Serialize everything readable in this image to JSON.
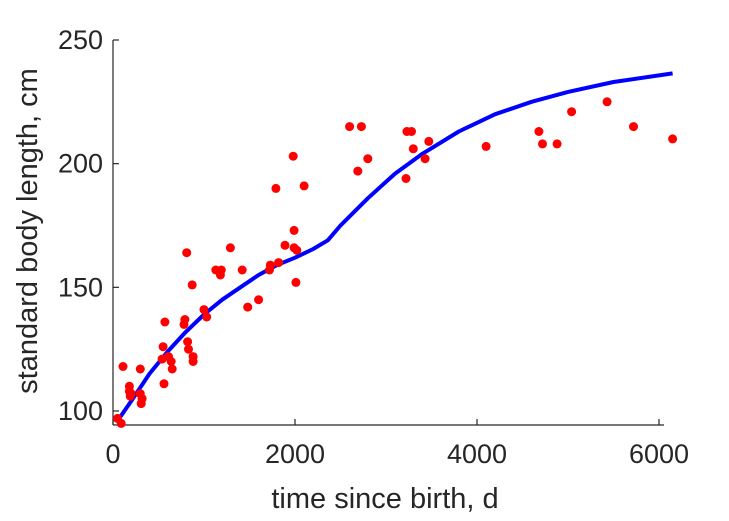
{
  "chart_data": {
    "type": "scatter",
    "xlabel": "time since birth, d",
    "ylabel": "standard body length, cm",
    "xlim": [
      0,
      6200
    ],
    "ylim": [
      95,
      250
    ],
    "xticks": [
      0,
      2000,
      4000,
      6000
    ],
    "yticks": [
      100,
      150,
      200,
      250
    ],
    "grid": false,
    "colors": {
      "points": "#ff0000",
      "curve": "#0000ff",
      "axis": "#262626"
    },
    "series": [
      {
        "kind": "scatter",
        "points": [
          [
            50,
            97
          ],
          [
            90,
            95
          ],
          [
            110,
            118
          ],
          [
            180,
            110
          ],
          [
            180,
            108
          ],
          [
            190,
            106
          ],
          [
            200,
            107
          ],
          [
            300,
            117
          ],
          [
            300,
            107
          ],
          [
            310,
            103
          ],
          [
            320,
            105
          ],
          [
            540,
            121
          ],
          [
            550,
            126
          ],
          [
            560,
            111
          ],
          [
            570,
            136
          ],
          [
            610,
            122
          ],
          [
            640,
            120
          ],
          [
            650,
            117
          ],
          [
            780,
            135
          ],
          [
            790,
            137
          ],
          [
            810,
            164
          ],
          [
            820,
            128
          ],
          [
            830,
            125
          ],
          [
            870,
            151
          ],
          [
            880,
            122
          ],
          [
            880,
            120
          ],
          [
            1000,
            141
          ],
          [
            1030,
            138
          ],
          [
            1130,
            157
          ],
          [
            1180,
            155
          ],
          [
            1190,
            157
          ],
          [
            1290,
            166
          ],
          [
            1420,
            157
          ],
          [
            1480,
            142
          ],
          [
            1600,
            145
          ],
          [
            1720,
            157
          ],
          [
            1730,
            159
          ],
          [
            1790,
            190
          ],
          [
            1820,
            160
          ],
          [
            1890,
            167
          ],
          [
            1980,
            203
          ],
          [
            1990,
            173
          ],
          [
            1990,
            166
          ],
          [
            2010,
            152
          ],
          [
            2020,
            165
          ],
          [
            2100,
            191
          ],
          [
            2600,
            215
          ],
          [
            2690,
            197
          ],
          [
            2730,
            215
          ],
          [
            2800,
            202
          ],
          [
            3220,
            194
          ],
          [
            3230,
            213
          ],
          [
            3280,
            213
          ],
          [
            3300,
            206
          ],
          [
            3430,
            202
          ],
          [
            3470,
            209
          ],
          [
            4100,
            207
          ],
          [
            4680,
            213
          ],
          [
            4720,
            208
          ],
          [
            4880,
            208
          ],
          [
            5040,
            221
          ],
          [
            5430,
            225
          ],
          [
            5720,
            215
          ],
          [
            6150,
            210
          ]
        ]
      },
      {
        "kind": "line",
        "points": [
          [
            50,
            96
          ],
          [
            200,
            104
          ],
          [
            400,
            115
          ],
          [
            600,
            124
          ],
          [
            800,
            132
          ],
          [
            1000,
            139
          ],
          [
            1200,
            145
          ],
          [
            1400,
            150
          ],
          [
            1600,
            155
          ],
          [
            1800,
            159
          ],
          [
            2000,
            162
          ],
          [
            2200,
            165.5
          ],
          [
            2360,
            169
          ],
          [
            2500,
            175
          ],
          [
            2800,
            186
          ],
          [
            3100,
            196
          ],
          [
            3400,
            204
          ],
          [
            3800,
            213
          ],
          [
            4200,
            220
          ],
          [
            4600,
            225
          ],
          [
            5000,
            229
          ],
          [
            5500,
            233
          ],
          [
            6150,
            236.5
          ]
        ]
      }
    ]
  }
}
